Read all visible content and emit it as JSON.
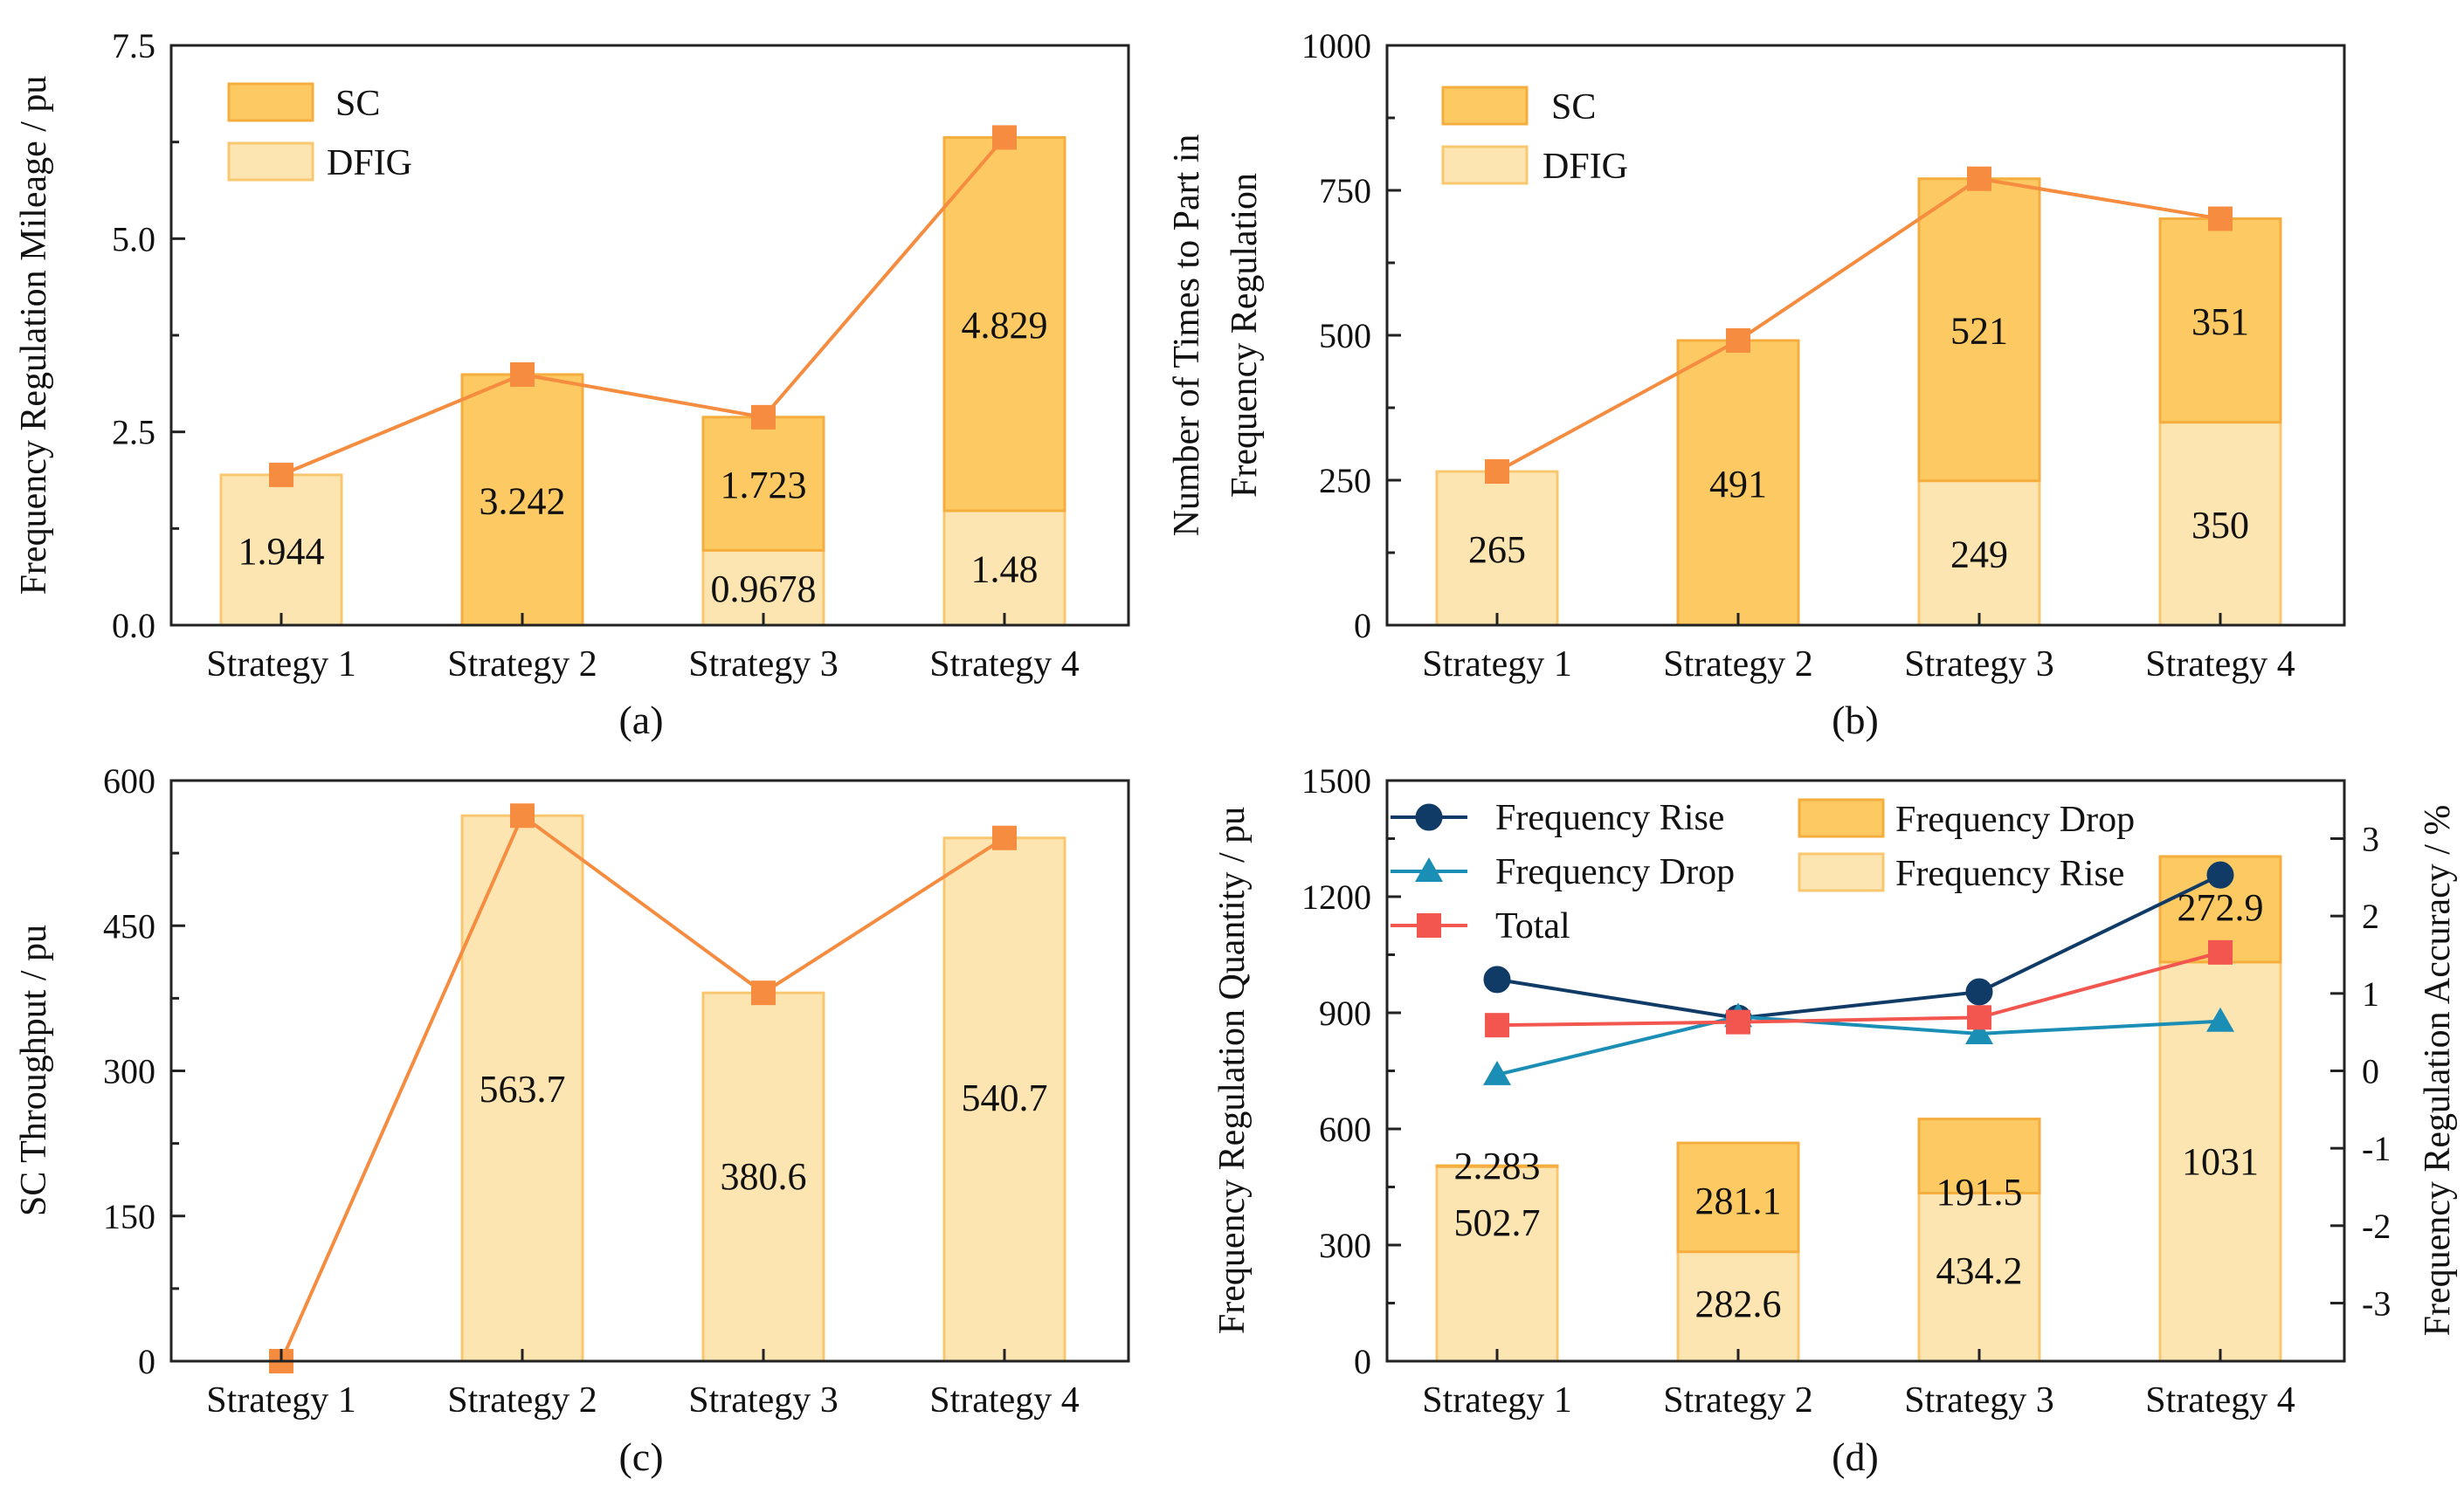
{
  "colors": {
    "light_fill": "#FDE5B2",
    "light_stroke": "#F9C76F",
    "dark_fill": "#FCC962",
    "dark_stroke": "#F5AE3E",
    "line_orange": "#F58C3F",
    "marker_orange": "#F58C3F",
    "navy": "#113B67",
    "teal": "#1B8EB5",
    "red": "#F2564F"
  },
  "chart_data": [
    {
      "id": "a",
      "type": "bar",
      "stacked": true,
      "panel_label": "(a)",
      "ylabel": "Frequency Regulation Mileage / pu",
      "ylim": [
        0,
        7.5
      ],
      "yticks": [
        "0.0",
        "2.5",
        "5.0",
        "7.5"
      ],
      "categories": [
        "Strategy 1",
        "Strategy 2",
        "Strategy 3",
        "Strategy 4"
      ],
      "legend": [
        "SC",
        "DFIG"
      ],
      "series": [
        {
          "name": "DFIG",
          "values": [
            1.944,
            0,
            0.9678,
            1.48
          ],
          "labels": [
            "1.944",
            "",
            "0.9678",
            "1.48"
          ]
        },
        {
          "name": "SC",
          "values": [
            0,
            3.242,
            1.723,
            4.829
          ],
          "labels": [
            "",
            "3.242",
            "1.723",
            "4.829"
          ]
        }
      ],
      "line": [
        1.944,
        3.242,
        2.69,
        6.309
      ]
    },
    {
      "id": "b",
      "type": "bar",
      "stacked": true,
      "panel_label": "(b)",
      "ylabel": [
        "Number of Times to Part in",
        "Frequency Regulation"
      ],
      "ylim": [
        0,
        1000
      ],
      "yticks": [
        "0",
        "250",
        "500",
        "750",
        "1000"
      ],
      "categories": [
        "Strategy 1",
        "Strategy 2",
        "Strategy 3",
        "Strategy 4"
      ],
      "legend": [
        "SC",
        "DFIG"
      ],
      "series": [
        {
          "name": "DFIG",
          "values": [
            265,
            0,
            249,
            350
          ],
          "labels": [
            "265",
            "",
            "249",
            "350"
          ]
        },
        {
          "name": "SC",
          "values": [
            0,
            491,
            521,
            351
          ],
          "labels": [
            "",
            "491",
            "521",
            "351"
          ]
        }
      ],
      "line": [
        265,
        491,
        770,
        701
      ]
    },
    {
      "id": "c",
      "type": "bar",
      "panel_label": "(c)",
      "ylabel": "SC Throughput / pu",
      "ylim": [
        0,
        600
      ],
      "yticks": [
        "0",
        "150",
        "300",
        "450",
        "600"
      ],
      "categories": [
        "Strategy 1",
        "Strategy 2",
        "Strategy 3",
        "Strategy 4"
      ],
      "series": [
        {
          "name": "SC Throughput",
          "values": [
            0,
            563.7,
            380.6,
            540.7
          ],
          "labels": [
            "",
            "563.7",
            "380.6",
            "540.7"
          ]
        }
      ],
      "line": [
        0,
        563.7,
        380.6,
        540.7
      ]
    },
    {
      "id": "d",
      "type": "bar",
      "stacked": true,
      "panel_label": "(d)",
      "ylabel": "Frequency Regulation Quantity / pu",
      "y2label": "Frequency Regulation Accuracy / %",
      "ylim": [
        0,
        1500
      ],
      "yticks": [
        "0",
        "300",
        "600",
        "900",
        "1200",
        "1500"
      ],
      "y2lim": [
        -3.75,
        3.75
      ],
      "y2ticks": [
        "-3",
        "-2",
        "-1",
        "0",
        "1",
        "2",
        "3"
      ],
      "categories": [
        "Strategy 1",
        "Strategy 2",
        "Strategy 3",
        "Strategy 4"
      ],
      "bar_series": [
        {
          "name": "Frequency Rise",
          "values": [
            502.7,
            282.6,
            434.2,
            1031
          ],
          "labels": [
            "502.7",
            "282.6",
            "434.2",
            "1031"
          ]
        },
        {
          "name": "Frequency Drop",
          "values": [
            2.283,
            281.1,
            191.5,
            272.9
          ],
          "labels": [
            "2.283",
            "281.1",
            "191.5",
            "272.9"
          ]
        }
      ],
      "line_series": [
        {
          "name": "Frequency Rise",
          "marker": "circle",
          "values": [
            1.18,
            0.68,
            1.02,
            2.53
          ]
        },
        {
          "name": "Frequency Drop",
          "marker": "triangle",
          "values": [
            -0.05,
            0.7,
            0.48,
            0.64
          ]
        },
        {
          "name": "Total",
          "marker": "square",
          "values": [
            0.59,
            0.63,
            0.69,
            1.53
          ]
        }
      ],
      "legend_lines": [
        "Frequency Rise",
        "Frequency Drop",
        "Total"
      ],
      "legend_bars": [
        "Frequency Drop",
        "Frequency Rise"
      ]
    }
  ]
}
